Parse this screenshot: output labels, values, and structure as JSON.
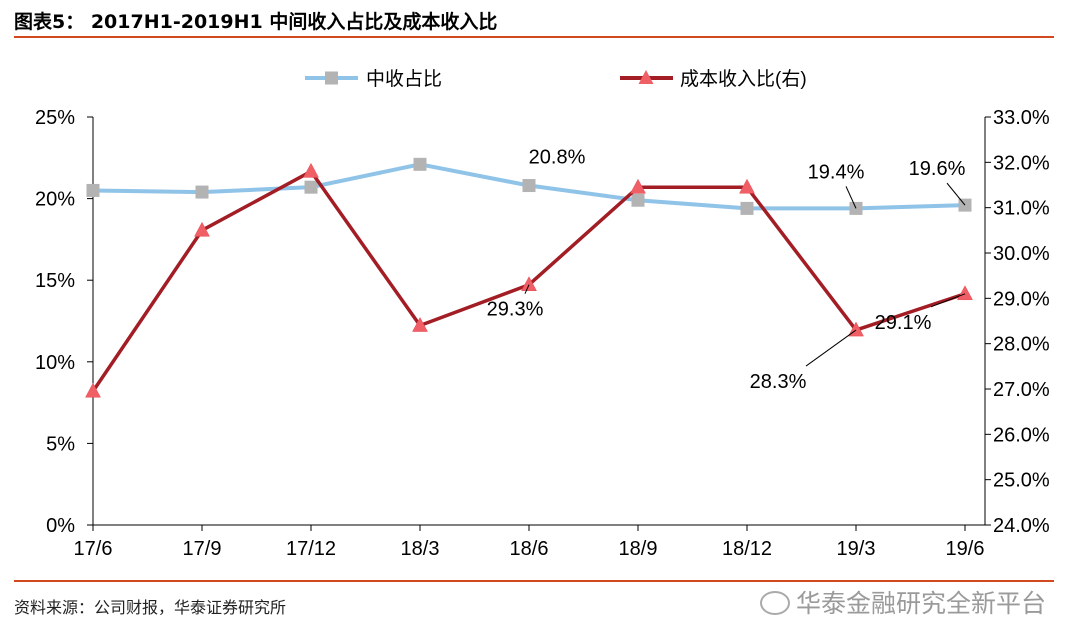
{
  "header": {
    "title": "图表5： 2017H1-2019H1 中间收入占比及成本收入比"
  },
  "footer": {
    "source": "资料来源：公司财报，华泰证券研究所",
    "watermark": "华泰金融研究全新平台"
  },
  "chart_data": {
    "type": "line",
    "categories": [
      "17/6",
      "17/9",
      "17/12",
      "18/3",
      "18/6",
      "18/9",
      "18/12",
      "19/3",
      "19/6"
    ],
    "series": [
      {
        "name": "中收占比",
        "axis": "left",
        "color": "#8fc3e8",
        "marker": "square",
        "values": [
          20.5,
          20.4,
          20.7,
          22.1,
          20.8,
          19.9,
          19.4,
          19.4,
          19.6
        ]
      },
      {
        "name": "成本收入比(右)",
        "axis": "right",
        "color": "#a31d25",
        "marker": "triangle",
        "values": [
          26.95,
          30.5,
          31.8,
          28.4,
          29.3,
          31.45,
          31.45,
          28.3,
          29.1
        ]
      }
    ],
    "y_left": {
      "min": 0,
      "max": 25,
      "ticks": [
        "0%",
        "5%",
        "10%",
        "15%",
        "20%",
        "25%"
      ]
    },
    "y_right": {
      "min": 24,
      "max": 33,
      "ticks": [
        "24.0%",
        "25.0%",
        "26.0%",
        "27.0%",
        "28.0%",
        "29.0%",
        "30.0%",
        "31.0%",
        "32.0%",
        "33.0%"
      ]
    },
    "annotations": [
      {
        "text": "20.8%",
        "series": 0,
        "index": 4
      },
      {
        "text": "19.4%",
        "series": 0,
        "index": 7
      },
      {
        "text": "19.6%",
        "series": 0,
        "index": 8
      },
      {
        "text": "29.3%",
        "series": 1,
        "index": 4
      },
      {
        "text": "28.3%",
        "series": 1,
        "index": 7
      },
      {
        "text": "29.1%",
        "series": 1,
        "index": 8
      }
    ],
    "grid": false,
    "legend": "top"
  }
}
